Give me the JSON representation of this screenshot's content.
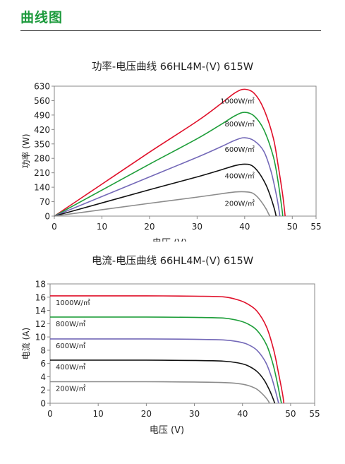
{
  "page": {
    "section_title": "曲线图"
  },
  "chart_data": [
    {
      "type": "line",
      "title": "功率-电压曲线 66HL4M-(V) 615W",
      "xlabel": "电压 (V)",
      "ylabel": "功率 (W)",
      "xlim": [
        0,
        55
      ],
      "ylim": [
        0,
        630
      ],
      "xticks": [
        0,
        10,
        20,
        30,
        40,
        50,
        55
      ],
      "yticks": [
        0,
        70,
        140,
        210,
        280,
        350,
        420,
        490,
        560,
        630
      ],
      "grid": false,
      "legend": "none",
      "series": [
        {
          "name": "1000W/㎡",
          "color": "#e0102a",
          "points": [
            [
              0,
              0
            ],
            [
              10,
              155
            ],
            [
              20,
              310
            ],
            [
              30,
              460
            ],
            [
              35,
              545
            ],
            [
              38,
              598
            ],
            [
              40,
              615
            ],
            [
              42,
              595
            ],
            [
              44,
              520
            ],
            [
              46,
              380
            ],
            [
              47,
              250
            ],
            [
              48,
              100
            ],
            [
              48.5,
              0
            ]
          ]
        },
        {
          "name": "800W/㎡",
          "color": "#1e9e3a",
          "points": [
            [
              0,
              0
            ],
            [
              10,
              126
            ],
            [
              20,
              252
            ],
            [
              30,
              375
            ],
            [
              35,
              444
            ],
            [
              38,
              487
            ],
            [
              40,
              503
            ],
            [
              42,
              485
            ],
            [
              44,
              420
            ],
            [
              46,
              290
            ],
            [
              47,
              170
            ],
            [
              47.8,
              40
            ],
            [
              48,
              0
            ]
          ]
        },
        {
          "name": "600W/㎡",
          "color": "#7469b8",
          "points": [
            [
              0,
              0
            ],
            [
              10,
              95
            ],
            [
              20,
              190
            ],
            [
              30,
              285
            ],
            [
              35,
              336
            ],
            [
              38,
              368
            ],
            [
              40,
              380
            ],
            [
              42,
              365
            ],
            [
              44,
              315
            ],
            [
              45.5,
              220
            ],
            [
              46.5,
              120
            ],
            [
              47,
              60
            ],
            [
              47.4,
              0
            ]
          ]
        },
        {
          "name": "400W/㎡",
          "color": "#111111",
          "points": [
            [
              0,
              0
            ],
            [
              10,
              64
            ],
            [
              20,
              128
            ],
            [
              30,
              190
            ],
            [
              35,
              224
            ],
            [
              38,
              245
            ],
            [
              40,
              252
            ],
            [
              41.5,
              245
            ],
            [
              43,
              210
            ],
            [
              44.5,
              150
            ],
            [
              45.5,
              90
            ],
            [
              46.3,
              30
            ],
            [
              46.6,
              0
            ]
          ]
        },
        {
          "name": "200W/㎡",
          "color": "#8c8c8c",
          "points": [
            [
              0,
              0
            ],
            [
              10,
              31
            ],
            [
              20,
              62
            ],
            [
              30,
              92
            ],
            [
              35,
              108
            ],
            [
              38,
              117
            ],
            [
              40,
              118
            ],
            [
              41.5,
              113
            ],
            [
              42.5,
              97
            ],
            [
              43.5,
              70
            ],
            [
              44.5,
              35
            ],
            [
              45,
              12
            ],
            [
              45.3,
              0
            ]
          ]
        }
      ]
    },
    {
      "type": "line",
      "title": "电流-电压曲线 66HL4M-(V) 615W",
      "xlabel": "电压 (V)",
      "ylabel": "电流 (A)",
      "xlim": [
        0,
        55
      ],
      "ylim": [
        0,
        18
      ],
      "xticks": [
        0,
        10,
        20,
        30,
        40,
        50,
        55
      ],
      "yticks": [
        0,
        2,
        4,
        6,
        8,
        10,
        12,
        14,
        16,
        18
      ],
      "grid": false,
      "legend": "none",
      "series": [
        {
          "name": "1000W/㎡",
          "color": "#e0102a",
          "points": [
            [
              0,
              16.2
            ],
            [
              10,
              16.2
            ],
            [
              20,
              16.2
            ],
            [
              30,
              16.15
            ],
            [
              36,
              16.05
            ],
            [
              39,
              15.6
            ],
            [
              41,
              15.0
            ],
            [
              43,
              13.9
            ],
            [
              45,
              11.5
            ],
            [
              46.5,
              8.0
            ],
            [
              47.5,
              4.5
            ],
            [
              48.3,
              1.5
            ],
            [
              48.6,
              0
            ]
          ]
        },
        {
          "name": "800W/㎡",
          "color": "#1e9e3a",
          "points": [
            [
              0,
              13.0
            ],
            [
              10,
              13.0
            ],
            [
              20,
              13.0
            ],
            [
              30,
              12.95
            ],
            [
              36,
              12.85
            ],
            [
              39,
              12.5
            ],
            [
              41,
              12.0
            ],
            [
              43,
              11.0
            ],
            [
              45,
              8.8
            ],
            [
              46.3,
              6.0
            ],
            [
              47.2,
              3.2
            ],
            [
              47.8,
              1.0
            ],
            [
              48.1,
              0
            ]
          ]
        },
        {
          "name": "600W/㎡",
          "color": "#7469b8",
          "points": [
            [
              0,
              9.7
            ],
            [
              10,
              9.7
            ],
            [
              20,
              9.7
            ],
            [
              30,
              9.65
            ],
            [
              36,
              9.55
            ],
            [
              39,
              9.3
            ],
            [
              41,
              8.9
            ],
            [
              43,
              8.0
            ],
            [
              44.8,
              6.2
            ],
            [
              46,
              4.0
            ],
            [
              46.8,
              2.0
            ],
            [
              47.3,
              0.6
            ],
            [
              47.5,
              0
            ]
          ]
        },
        {
          "name": "400W/㎡",
          "color": "#111111",
          "points": [
            [
              0,
              6.5
            ],
            [
              10,
              6.5
            ],
            [
              20,
              6.5
            ],
            [
              30,
              6.45
            ],
            [
              36,
              6.35
            ],
            [
              39,
              6.1
            ],
            [
              41,
              5.7
            ],
            [
              43,
              4.8
            ],
            [
              44.5,
              3.5
            ],
            [
              45.6,
              2.0
            ],
            [
              46.3,
              0.8
            ],
            [
              46.7,
              0
            ]
          ]
        },
        {
          "name": "200W/㎡",
          "color": "#8c8c8c",
          "points": [
            [
              0,
              3.25
            ],
            [
              10,
              3.25
            ],
            [
              20,
              3.25
            ],
            [
              30,
              3.2
            ],
            [
              36,
              3.12
            ],
            [
              39,
              2.98
            ],
            [
              41,
              2.72
            ],
            [
              42.8,
              2.2
            ],
            [
              44,
              1.5
            ],
            [
              44.9,
              0.8
            ],
            [
              45.4,
              0.3
            ],
            [
              45.6,
              0
            ]
          ]
        }
      ]
    }
  ],
  "colors": {
    "section_title": "#1c9a3c",
    "axis": "#888888"
  }
}
